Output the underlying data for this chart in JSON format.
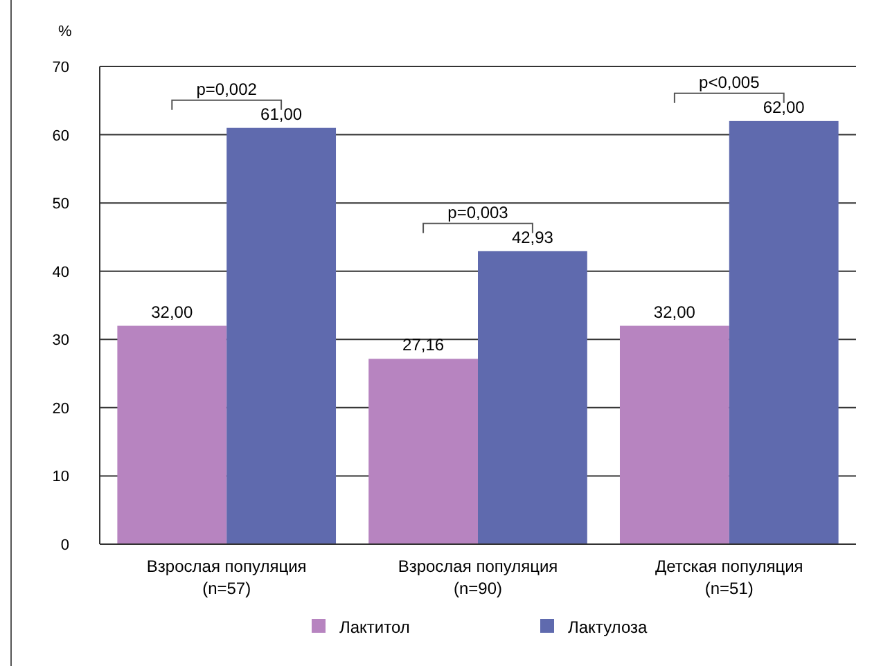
{
  "chart_data": {
    "type": "bar",
    "ylabel": "%",
    "categories": [
      "Взрослая популяция\n(n=57)",
      "Взрослая популяция\n(n=90)",
      "Детская популяция\n(n=51)"
    ],
    "series": [
      {
        "name": "Лактитол",
        "color": "#b784c0",
        "values": [
          32,
          27.16,
          32
        ],
        "value_labels": [
          "32,00",
          "27,16",
          "32,00"
        ]
      },
      {
        "name": "Лактулоза",
        "color": "#5f6aae",
        "values": [
          61,
          42.93,
          62
        ],
        "value_labels": [
          "61,00",
          "42,93",
          "62,00"
        ]
      }
    ],
    "ylim": [
      0,
      70
    ],
    "yticks": [
      0,
      10,
      20,
      30,
      40,
      50,
      60,
      70
    ],
    "grid": "y",
    "legend": "bottom",
    "annotations": [
      "p=0,002",
      "p=0,003",
      "p<0,005"
    ]
  }
}
